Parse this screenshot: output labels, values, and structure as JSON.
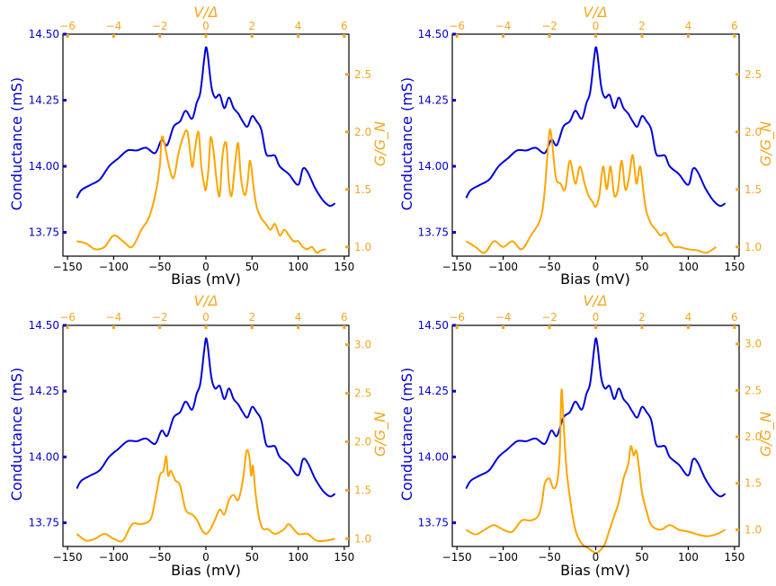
{
  "colors": {
    "conductance": "#0000dd",
    "normalized": "#ffa500",
    "axis": "#000000"
  },
  "labels": {
    "bottom": "Bias (mV)",
    "left": "Conductance (mS)",
    "top": "V/Δ",
    "right": "G/G_N"
  },
  "chart_data": [
    {
      "type": "line",
      "panel": "top-left",
      "xlim": [
        -155,
        155
      ],
      "ylim_left": [
        13.66,
        14.5
      ],
      "ylim_right": [
        0.92,
        2.85
      ],
      "xticks": [
        -150,
        -100,
        -50,
        0,
        50,
        100,
        150
      ],
      "yticks_left": [
        "13.75",
        "14.00",
        "14.25",
        "14.50"
      ],
      "yticks_right": [
        "1.0",
        "1.5",
        "2.0",
        "2.5"
      ],
      "top_ticks": [
        -6,
        -4,
        -2,
        0,
        2,
        4,
        6
      ],
      "top_scale": 25,
      "series": [
        {
          "axis": "left",
          "x": [
            -140,
            -135,
            -125,
            -115,
            -105,
            -95,
            -85,
            -75,
            -65,
            -55,
            -48,
            -42,
            -35,
            -28,
            -22,
            -15,
            -10,
            -6,
            -2,
            0,
            2,
            6,
            10,
            15,
            20,
            25,
            30,
            35,
            40,
            45,
            50,
            55,
            60,
            65,
            70,
            75,
            80,
            90,
            100,
            105,
            110,
            118,
            125,
            130,
            135,
            140
          ],
          "y": [
            13.88,
            13.91,
            13.93,
            13.95,
            14.0,
            14.03,
            14.06,
            14.06,
            14.07,
            14.05,
            14.1,
            14.08,
            14.15,
            14.17,
            14.21,
            14.18,
            14.24,
            14.28,
            14.4,
            14.45,
            14.42,
            14.3,
            14.26,
            14.27,
            14.22,
            14.26,
            14.22,
            14.2,
            14.17,
            14.15,
            14.19,
            14.17,
            14.14,
            14.05,
            14.04,
            14.04,
            14.0,
            13.97,
            13.93,
            13.99,
            13.98,
            13.92,
            13.88,
            13.86,
            13.85,
            13.86
          ]
        },
        {
          "axis": "right",
          "x": [
            -140,
            -130,
            -120,
            -110,
            -100,
            -90,
            -80,
            -70,
            -62,
            -55,
            -50,
            -48,
            -45,
            -40,
            -35,
            -30,
            -25,
            -20,
            -15,
            -12,
            -8,
            -5,
            -2,
            0,
            3,
            5,
            8,
            12,
            15,
            18,
            22,
            25,
            28,
            32,
            35,
            38,
            42,
            45,
            48,
            52,
            55,
            60,
            65,
            70,
            75,
            80,
            85,
            90,
            95,
            100,
            105,
            110,
            115,
            120,
            125,
            130
          ],
          "y": [
            1.05,
            1.03,
            0.98,
            1.0,
            1.1,
            1.05,
            1.0,
            1.15,
            1.25,
            1.45,
            1.7,
            1.95,
            1.9,
            1.7,
            1.6,
            1.8,
            1.95,
            2.0,
            1.7,
            1.85,
            2.0,
            1.7,
            1.55,
            1.5,
            1.7,
            1.95,
            1.85,
            1.55,
            1.45,
            1.8,
            1.9,
            1.55,
            1.45,
            1.75,
            1.9,
            1.6,
            1.45,
            1.55,
            1.75,
            1.5,
            1.35,
            1.25,
            1.2,
            1.15,
            1.2,
            1.1,
            1.15,
            1.1,
            1.05,
            1.05,
            1.0,
            0.98,
            1.0,
            0.95,
            0.97,
            0.98
          ]
        }
      ]
    },
    {
      "type": "line",
      "panel": "top-right",
      "xlim": [
        -155,
        155
      ],
      "ylim_left": [
        13.66,
        14.5
      ],
      "ylim_right": [
        0.92,
        2.85
      ],
      "xticks": [
        -150,
        -100,
        -50,
        0,
        50,
        100,
        150
      ],
      "yticks_left": [
        "13.75",
        "14.00",
        "14.25",
        "14.50"
      ],
      "yticks_right": [
        "1.0",
        "1.5",
        "2.0",
        "2.5"
      ],
      "top_ticks": [
        -6,
        -4,
        -2,
        0,
        2,
        4,
        6
      ],
      "top_scale": 25,
      "series": [
        {
          "axis": "left",
          "x": [
            -140,
            -135,
            -125,
            -115,
            -105,
            -95,
            -85,
            -75,
            -65,
            -55,
            -48,
            -42,
            -35,
            -28,
            -22,
            -15,
            -10,
            -6,
            -2,
            0,
            2,
            6,
            10,
            15,
            20,
            25,
            30,
            35,
            40,
            45,
            50,
            55,
            60,
            65,
            70,
            75,
            80,
            90,
            100,
            105,
            110,
            118,
            125,
            130,
            135,
            140
          ],
          "y": [
            13.88,
            13.91,
            13.93,
            13.95,
            14.0,
            14.03,
            14.06,
            14.06,
            14.07,
            14.05,
            14.1,
            14.08,
            14.15,
            14.17,
            14.21,
            14.18,
            14.24,
            14.28,
            14.4,
            14.45,
            14.42,
            14.3,
            14.26,
            14.27,
            14.22,
            14.26,
            14.22,
            14.2,
            14.17,
            14.15,
            14.19,
            14.17,
            14.14,
            14.05,
            14.04,
            14.04,
            14.0,
            13.97,
            13.93,
            13.99,
            13.98,
            13.92,
            13.88,
            13.86,
            13.85,
            13.86
          ]
        },
        {
          "axis": "right",
          "x": [
            -140,
            -130,
            -120,
            -110,
            -100,
            -90,
            -80,
            -70,
            -62,
            -58,
            -55,
            -50,
            -47,
            -43,
            -38,
            -33,
            -28,
            -22,
            -17,
            -12,
            -8,
            -4,
            0,
            4,
            8,
            12,
            16,
            20,
            24,
            28,
            32,
            36,
            40,
            44,
            48,
            52,
            55,
            60,
            65,
            70,
            75,
            80,
            85,
            90,
            100,
            110,
            120,
            130
          ],
          "y": [
            1.05,
            1.0,
            0.95,
            1.05,
            1.0,
            1.05,
            0.98,
            1.1,
            1.2,
            1.3,
            1.5,
            2.0,
            1.9,
            1.6,
            1.55,
            1.5,
            1.75,
            1.55,
            1.7,
            1.55,
            1.45,
            1.4,
            1.35,
            1.45,
            1.7,
            1.5,
            1.7,
            1.45,
            1.5,
            1.75,
            1.5,
            1.6,
            1.8,
            1.55,
            1.7,
            1.45,
            1.3,
            1.2,
            1.15,
            1.1,
            1.12,
            1.05,
            1.0,
            1.0,
            0.98,
            0.97,
            0.95,
            1.0
          ]
        }
      ]
    },
    {
      "type": "line",
      "panel": "bottom-left",
      "xlim": [
        -155,
        155
      ],
      "ylim_left": [
        13.66,
        14.5
      ],
      "ylim_right": [
        0.92,
        3.2
      ],
      "xticks": [
        -150,
        -100,
        -50,
        0,
        50,
        100,
        150
      ],
      "yticks_left": [
        "13.75",
        "14.00",
        "14.25",
        "14.50"
      ],
      "yticks_right": [
        "1.0",
        "1.5",
        "2.0",
        "2.5",
        "3.0"
      ],
      "top_ticks": [
        -6,
        -4,
        -2,
        0,
        2,
        4,
        6
      ],
      "top_scale": 25,
      "series": [
        {
          "axis": "left",
          "x": [
            -140,
            -135,
            -125,
            -115,
            -105,
            -95,
            -85,
            -75,
            -65,
            -55,
            -48,
            -42,
            -35,
            -28,
            -22,
            -15,
            -10,
            -6,
            -2,
            0,
            2,
            6,
            10,
            15,
            20,
            25,
            30,
            35,
            40,
            45,
            50,
            55,
            60,
            65,
            70,
            75,
            80,
            90,
            100,
            105,
            110,
            118,
            125,
            130,
            135,
            140
          ],
          "y": [
            13.88,
            13.91,
            13.93,
            13.95,
            14.0,
            14.03,
            14.06,
            14.06,
            14.07,
            14.05,
            14.1,
            14.08,
            14.15,
            14.17,
            14.21,
            14.18,
            14.24,
            14.28,
            14.4,
            14.45,
            14.42,
            14.3,
            14.26,
            14.27,
            14.22,
            14.26,
            14.22,
            14.2,
            14.17,
            14.15,
            14.19,
            14.17,
            14.14,
            14.05,
            14.04,
            14.04,
            14.0,
            13.97,
            13.93,
            13.99,
            13.98,
            13.92,
            13.88,
            13.86,
            13.85,
            13.86
          ]
        },
        {
          "axis": "right",
          "x": [
            -140,
            -130,
            -120,
            -110,
            -100,
            -90,
            -80,
            -70,
            -60,
            -55,
            -50,
            -46,
            -43,
            -41,
            -38,
            -33,
            -28,
            -22,
            -15,
            -10,
            -5,
            0,
            5,
            10,
            15,
            20,
            25,
            30,
            35,
            40,
            44,
            47,
            49,
            51,
            54,
            58,
            62,
            67,
            75,
            85,
            90,
            100,
            110,
            120,
            130,
            140
          ],
          "y": [
            1.05,
            0.98,
            1.0,
            1.05,
            1.0,
            0.98,
            1.15,
            1.15,
            1.2,
            1.4,
            1.65,
            1.7,
            1.85,
            1.65,
            1.7,
            1.6,
            1.55,
            1.3,
            1.25,
            1.2,
            1.1,
            1.05,
            1.1,
            1.2,
            1.3,
            1.25,
            1.4,
            1.45,
            1.4,
            1.6,
            1.9,
            1.85,
            1.65,
            1.75,
            1.45,
            1.2,
            1.1,
            1.1,
            1.05,
            1.1,
            1.15,
            1.05,
            1.05,
            0.98,
            0.98,
            1.0
          ]
        }
      ]
    },
    {
      "type": "line",
      "panel": "bottom-right",
      "xlim": [
        -155,
        155
      ],
      "ylim_left": [
        13.66,
        14.5
      ],
      "ylim_right": [
        0.82,
        3.2
      ],
      "xticks": [
        -150,
        -100,
        -50,
        0,
        50,
        100,
        150
      ],
      "yticks_left": [
        "13.75",
        "14.00",
        "14.25",
        "14.50"
      ],
      "yticks_right": [
        "1.0",
        "1.5",
        "2.0",
        "2.5",
        "3.0"
      ],
      "top_ticks": [
        -6,
        -4,
        -2,
        0,
        2,
        4,
        6
      ],
      "top_scale": 25,
      "series": [
        {
          "axis": "left",
          "x": [
            -140,
            -135,
            -125,
            -115,
            -105,
            -95,
            -85,
            -75,
            -65,
            -55,
            -48,
            -42,
            -35,
            -28,
            -22,
            -15,
            -10,
            -6,
            -2,
            0,
            2,
            6,
            10,
            15,
            20,
            25,
            30,
            35,
            40,
            45,
            50,
            55,
            60,
            65,
            70,
            75,
            80,
            90,
            100,
            105,
            110,
            118,
            125,
            130,
            135,
            140
          ],
          "y": [
            13.88,
            13.91,
            13.93,
            13.95,
            14.0,
            14.03,
            14.06,
            14.06,
            14.07,
            14.05,
            14.1,
            14.08,
            14.15,
            14.17,
            14.21,
            14.18,
            14.24,
            14.28,
            14.4,
            14.45,
            14.42,
            14.3,
            14.26,
            14.27,
            14.22,
            14.26,
            14.22,
            14.2,
            14.17,
            14.15,
            14.19,
            14.17,
            14.14,
            14.05,
            14.04,
            14.04,
            14.0,
            13.97,
            13.93,
            13.99,
            13.98,
            13.92,
            13.88,
            13.86,
            13.85,
            13.86
          ]
        },
        {
          "axis": "right",
          "x": [
            -140,
            -130,
            -120,
            -110,
            -100,
            -90,
            -80,
            -70,
            -62,
            -58,
            -55,
            -50,
            -46,
            -42,
            -39,
            -37,
            -35,
            -32,
            -28,
            -22,
            -15,
            -8,
            0,
            5,
            10,
            15,
            20,
            25,
            30,
            35,
            38,
            41,
            44,
            47,
            50,
            55,
            60,
            70,
            80,
            90,
            100,
            110,
            120,
            130,
            140
          ],
          "y": [
            1.0,
            0.95,
            1.0,
            1.05,
            1.0,
            0.98,
            1.1,
            1.1,
            1.15,
            1.3,
            1.5,
            1.55,
            1.45,
            1.5,
            1.8,
            2.5,
            2.2,
            1.7,
            1.35,
            1.0,
            0.85,
            0.8,
            0.75,
            0.78,
            0.85,
            1.0,
            1.15,
            1.3,
            1.55,
            1.7,
            1.9,
            1.8,
            1.85,
            1.65,
            1.4,
            1.2,
            1.05,
            1.0,
            1.05,
            1.0,
            0.98,
            0.95,
            0.93,
            0.95,
            1.0
          ]
        }
      ]
    }
  ]
}
